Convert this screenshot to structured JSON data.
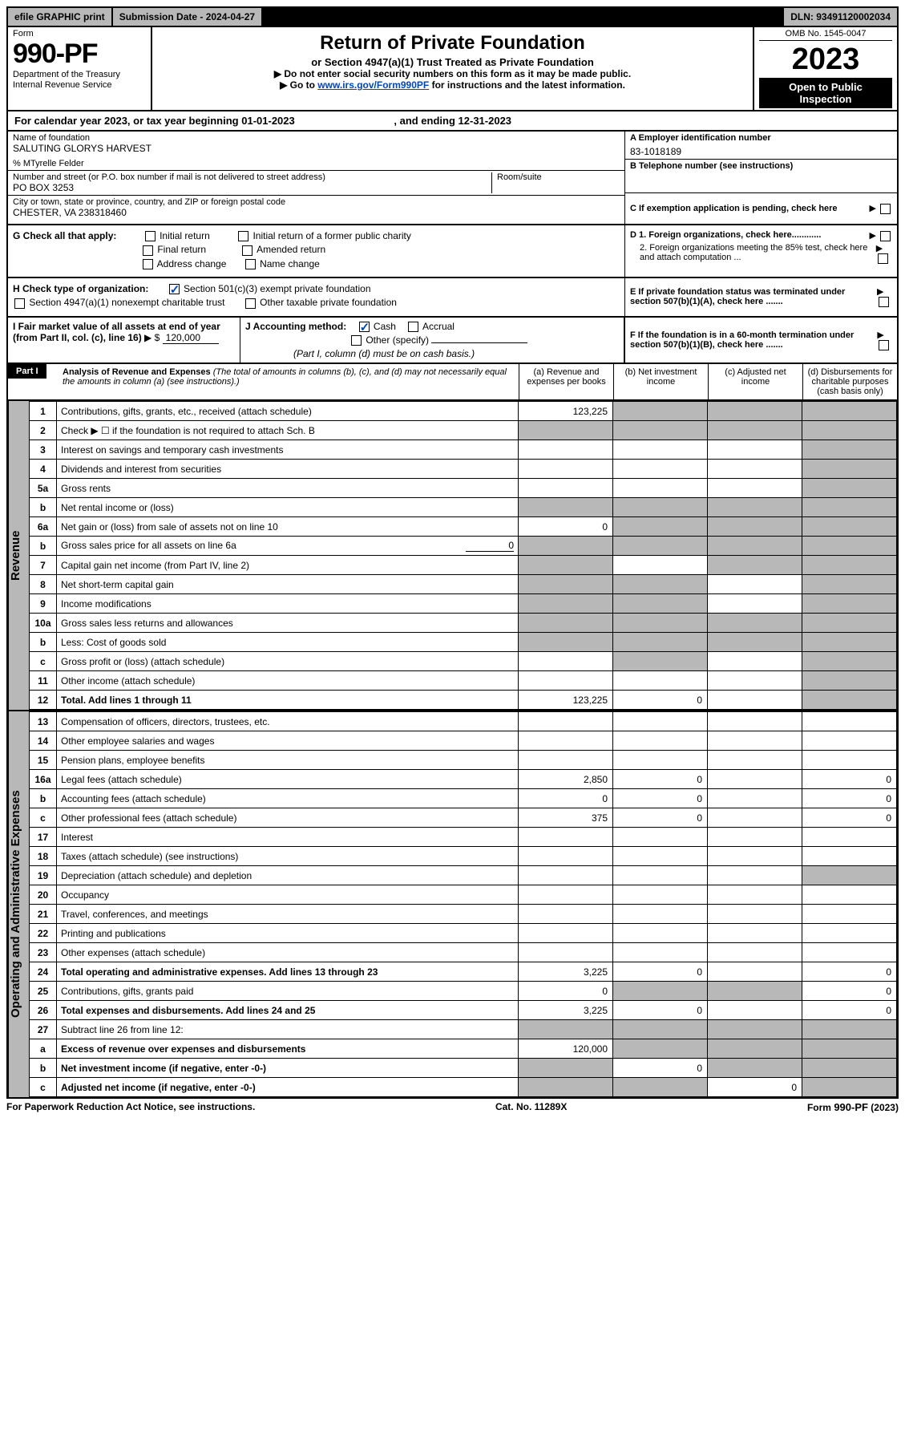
{
  "topbar": {
    "efile": "efile GRAPHIC print",
    "submission_label": "Submission Date - 2024-04-27",
    "dln": "DLN: 93491120002034"
  },
  "header": {
    "form_word": "Form",
    "form_number": "990-PF",
    "dept": "Department of the Treasury",
    "irs": "Internal Revenue Service",
    "title": "Return of Private Foundation",
    "subtitle": "or Section 4947(a)(1) Trust Treated as Private Foundation",
    "instr1": "▶ Do not enter social security numbers on this form as it may be made public.",
    "instr2_pre": "▶ Go to ",
    "instr2_link": "www.irs.gov/Form990PF",
    "instr2_post": " for instructions and the latest information.",
    "omb": "OMB No. 1545-0047",
    "year": "2023",
    "open_public": "Open to Public Inspection"
  },
  "calendar": {
    "text_pre": "For calendar year 2023, or tax year beginning ",
    "begin": "01-01-2023",
    "text_mid": " , and ending ",
    "end": "12-31-2023"
  },
  "identity": {
    "name_label": "Name of foundation",
    "name": "SALUTING GLORYS HARVEST",
    "pct_label": "% MTyrelle Felder",
    "street_label": "Number and street (or P.O. box number if mail is not delivered to street address)",
    "street": "PO BOX 3253",
    "room_label": "Room/suite",
    "city_label": "City or town, state or province, country, and ZIP or foreign postal code",
    "city": "CHESTER, VA  238318460",
    "a_label": "A Employer identification number",
    "ein": "83-1018189",
    "b_label": "B Telephone number (see instructions)",
    "c_label": "C If exemption application is pending, check here"
  },
  "checks_g": {
    "label": "G Check all that apply:",
    "initial_return": "Initial return",
    "final_return": "Final return",
    "address_change": "Address change",
    "initial_former": "Initial return of a former public charity",
    "amended": "Amended return",
    "name_change": "Name change"
  },
  "checks_h": {
    "label": "H Check type of organization:",
    "sec501": "Section 501(c)(3) exempt private foundation",
    "sec4947": "Section 4947(a)(1) nonexempt charitable trust",
    "other_taxable": "Other taxable private foundation"
  },
  "right_d": {
    "d1": "D 1. Foreign organizations, check here............",
    "d2": "2. Foreign organizations meeting the 85% test, check here and attach computation ...",
    "e": "E  If private foundation status was terminated under section 507(b)(1)(A), check here .......",
    "f": "F  If the foundation is in a 60-month termination under section 507(b)(1)(B), check here ......."
  },
  "box_i": {
    "label": "I Fair market value of all assets at end of year (from Part II, col. (c), line 16)",
    "arrow": "▶ $",
    "value": "120,000"
  },
  "box_j": {
    "label": "J Accounting method:",
    "cash": "Cash",
    "accrual": "Accrual",
    "other": "Other (specify)",
    "note": "(Part I, column (d) must be on cash basis.)"
  },
  "part1": {
    "part_label": "Part I",
    "heading": "Analysis of Revenue and Expenses",
    "heading_note": "(The total of amounts in columns (b), (c), and (d) may not necessarily equal the amounts in column (a) (see instructions).)",
    "col_a": "(a)  Revenue and expenses per books",
    "col_b": "(b)  Net investment income",
    "col_c": "(c)  Adjusted net income",
    "col_d": "(d)  Disbursements for charitable purposes (cash basis only)"
  },
  "side_labels": {
    "revenue": "Revenue",
    "expenses": "Operating and Administrative Expenses"
  },
  "rows": [
    {
      "n": "1",
      "label": "Contributions, gifts, grants, etc., received (attach schedule)",
      "a": "123,225",
      "b": "",
      "c": "",
      "d": "",
      "shade_b": true,
      "shade_c": true,
      "shade_d": true
    },
    {
      "n": "2",
      "label": "Check ▶ ☐ if the foundation is not required to attach Sch. B",
      "a": "",
      "b": "",
      "c": "",
      "d": "",
      "shade_a": true,
      "shade_b": true,
      "shade_c": true,
      "shade_d": true,
      "bold_not": true
    },
    {
      "n": "3",
      "label": "Interest on savings and temporary cash investments",
      "a": "",
      "b": "",
      "c": "",
      "d": "",
      "shade_d": true
    },
    {
      "n": "4",
      "label": "Dividends and interest from securities",
      "a": "",
      "b": "",
      "c": "",
      "d": "",
      "shade_d": true
    },
    {
      "n": "5a",
      "label": "Gross rents",
      "a": "",
      "b": "",
      "c": "",
      "d": "",
      "shade_d": true
    },
    {
      "n": "b",
      "label": "Net rental income or (loss)",
      "a": "",
      "b": "",
      "c": "",
      "d": "",
      "shade_a": true,
      "shade_b": true,
      "shade_c": true,
      "shade_d": true,
      "inset": true
    },
    {
      "n": "6a",
      "label": "Net gain or (loss) from sale of assets not on line 10",
      "a": "0",
      "b": "",
      "c": "",
      "d": "",
      "shade_b": true,
      "shade_c": true,
      "shade_d": true
    },
    {
      "n": "b",
      "label": "Gross sales price for all assets on line 6a",
      "a": "",
      "b": "",
      "c": "",
      "d": "",
      "shade_a": true,
      "shade_b": true,
      "shade_c": true,
      "shade_d": true,
      "inset": true,
      "inline_val": "0"
    },
    {
      "n": "7",
      "label": "Capital gain net income (from Part IV, line 2)",
      "a": "",
      "b": "",
      "c": "",
      "d": "",
      "shade_a": true,
      "shade_c": true,
      "shade_d": true
    },
    {
      "n": "8",
      "label": "Net short-term capital gain",
      "a": "",
      "b": "",
      "c": "",
      "d": "",
      "shade_a": true,
      "shade_b": true,
      "shade_d": true
    },
    {
      "n": "9",
      "label": "Income modifications",
      "a": "",
      "b": "",
      "c": "",
      "d": "",
      "shade_a": true,
      "shade_b": true,
      "shade_d": true
    },
    {
      "n": "10a",
      "label": "Gross sales less returns and allowances",
      "a": "",
      "b": "",
      "c": "",
      "d": "",
      "shade_a": true,
      "shade_b": true,
      "shade_c": true,
      "shade_d": true,
      "inset": true
    },
    {
      "n": "b",
      "label": "Less: Cost of goods sold",
      "a": "",
      "b": "",
      "c": "",
      "d": "",
      "shade_a": true,
      "shade_b": true,
      "shade_c": true,
      "shade_d": true,
      "inset": true
    },
    {
      "n": "c",
      "label": "Gross profit or (loss) (attach schedule)",
      "a": "",
      "b": "",
      "c": "",
      "d": "",
      "shade_b": true,
      "shade_d": true
    },
    {
      "n": "11",
      "label": "Other income (attach schedule)",
      "a": "",
      "b": "",
      "c": "",
      "d": "",
      "shade_d": true
    },
    {
      "n": "12",
      "label": "Total. Add lines 1 through 11",
      "a": "123,225",
      "b": "0",
      "c": "",
      "d": "",
      "bold": true,
      "shade_d": true
    }
  ],
  "exp_rows": [
    {
      "n": "13",
      "label": "Compensation of officers, directors, trustees, etc.",
      "a": "",
      "b": "",
      "c": "",
      "d": ""
    },
    {
      "n": "14",
      "label": "Other employee salaries and wages",
      "a": "",
      "b": "",
      "c": "",
      "d": ""
    },
    {
      "n": "15",
      "label": "Pension plans, employee benefits",
      "a": "",
      "b": "",
      "c": "",
      "d": ""
    },
    {
      "n": "16a",
      "label": "Legal fees (attach schedule)",
      "a": "2,850",
      "b": "0",
      "c": "",
      "d": "0"
    },
    {
      "n": "b",
      "label": "Accounting fees (attach schedule)",
      "a": "0",
      "b": "0",
      "c": "",
      "d": "0"
    },
    {
      "n": "c",
      "label": "Other professional fees (attach schedule)",
      "a": "375",
      "b": "0",
      "c": "",
      "d": "0"
    },
    {
      "n": "17",
      "label": "Interest",
      "a": "",
      "b": "",
      "c": "",
      "d": ""
    },
    {
      "n": "18",
      "label": "Taxes (attach schedule) (see instructions)",
      "a": "",
      "b": "",
      "c": "",
      "d": ""
    },
    {
      "n": "19",
      "label": "Depreciation (attach schedule) and depletion",
      "a": "",
      "b": "",
      "c": "",
      "d": "",
      "shade_d": true
    },
    {
      "n": "20",
      "label": "Occupancy",
      "a": "",
      "b": "",
      "c": "",
      "d": ""
    },
    {
      "n": "21",
      "label": "Travel, conferences, and meetings",
      "a": "",
      "b": "",
      "c": "",
      "d": ""
    },
    {
      "n": "22",
      "label": "Printing and publications",
      "a": "",
      "b": "",
      "c": "",
      "d": ""
    },
    {
      "n": "23",
      "label": "Other expenses (attach schedule)",
      "a": "",
      "b": "",
      "c": "",
      "d": ""
    },
    {
      "n": "24",
      "label": "Total operating and administrative expenses. Add lines 13 through 23",
      "a": "3,225",
      "b": "0",
      "c": "",
      "d": "0",
      "bold": true
    },
    {
      "n": "25",
      "label": "Contributions, gifts, grants paid",
      "a": "0",
      "b": "",
      "c": "",
      "d": "0",
      "shade_b": true,
      "shade_c": true
    },
    {
      "n": "26",
      "label": "Total expenses and disbursements. Add lines 24 and 25",
      "a": "3,225",
      "b": "0",
      "c": "",
      "d": "0",
      "bold": true
    },
    {
      "n": "27",
      "label": "Subtract line 26 from line 12:",
      "a": "",
      "b": "",
      "c": "",
      "d": "",
      "shade_a": true,
      "shade_b": true,
      "shade_c": true,
      "shade_d": true
    },
    {
      "n": "a",
      "label": "Excess of revenue over expenses and disbursements",
      "a": "120,000",
      "b": "",
      "c": "",
      "d": "",
      "bold": true,
      "shade_b": true,
      "shade_c": true,
      "shade_d": true
    },
    {
      "n": "b",
      "label": "Net investment income (if negative, enter -0-)",
      "a": "",
      "b": "0",
      "c": "",
      "d": "",
      "bold": true,
      "shade_a": true,
      "shade_c": true,
      "shade_d": true
    },
    {
      "n": "c",
      "label": "Adjusted net income (if negative, enter -0-)",
      "a": "",
      "b": "",
      "c": "0",
      "d": "",
      "bold": true,
      "shade_a": true,
      "shade_b": true,
      "shade_d": true
    }
  ],
  "footer": {
    "paperwork": "For Paperwork Reduction Act Notice, see instructions.",
    "catno": "Cat. No. 11289X",
    "formref": "Form 990-PF (2023)"
  },
  "colors": {
    "link": "#0047b3",
    "shade": "#b8b8b8",
    "black": "#000000",
    "white": "#ffffff"
  }
}
